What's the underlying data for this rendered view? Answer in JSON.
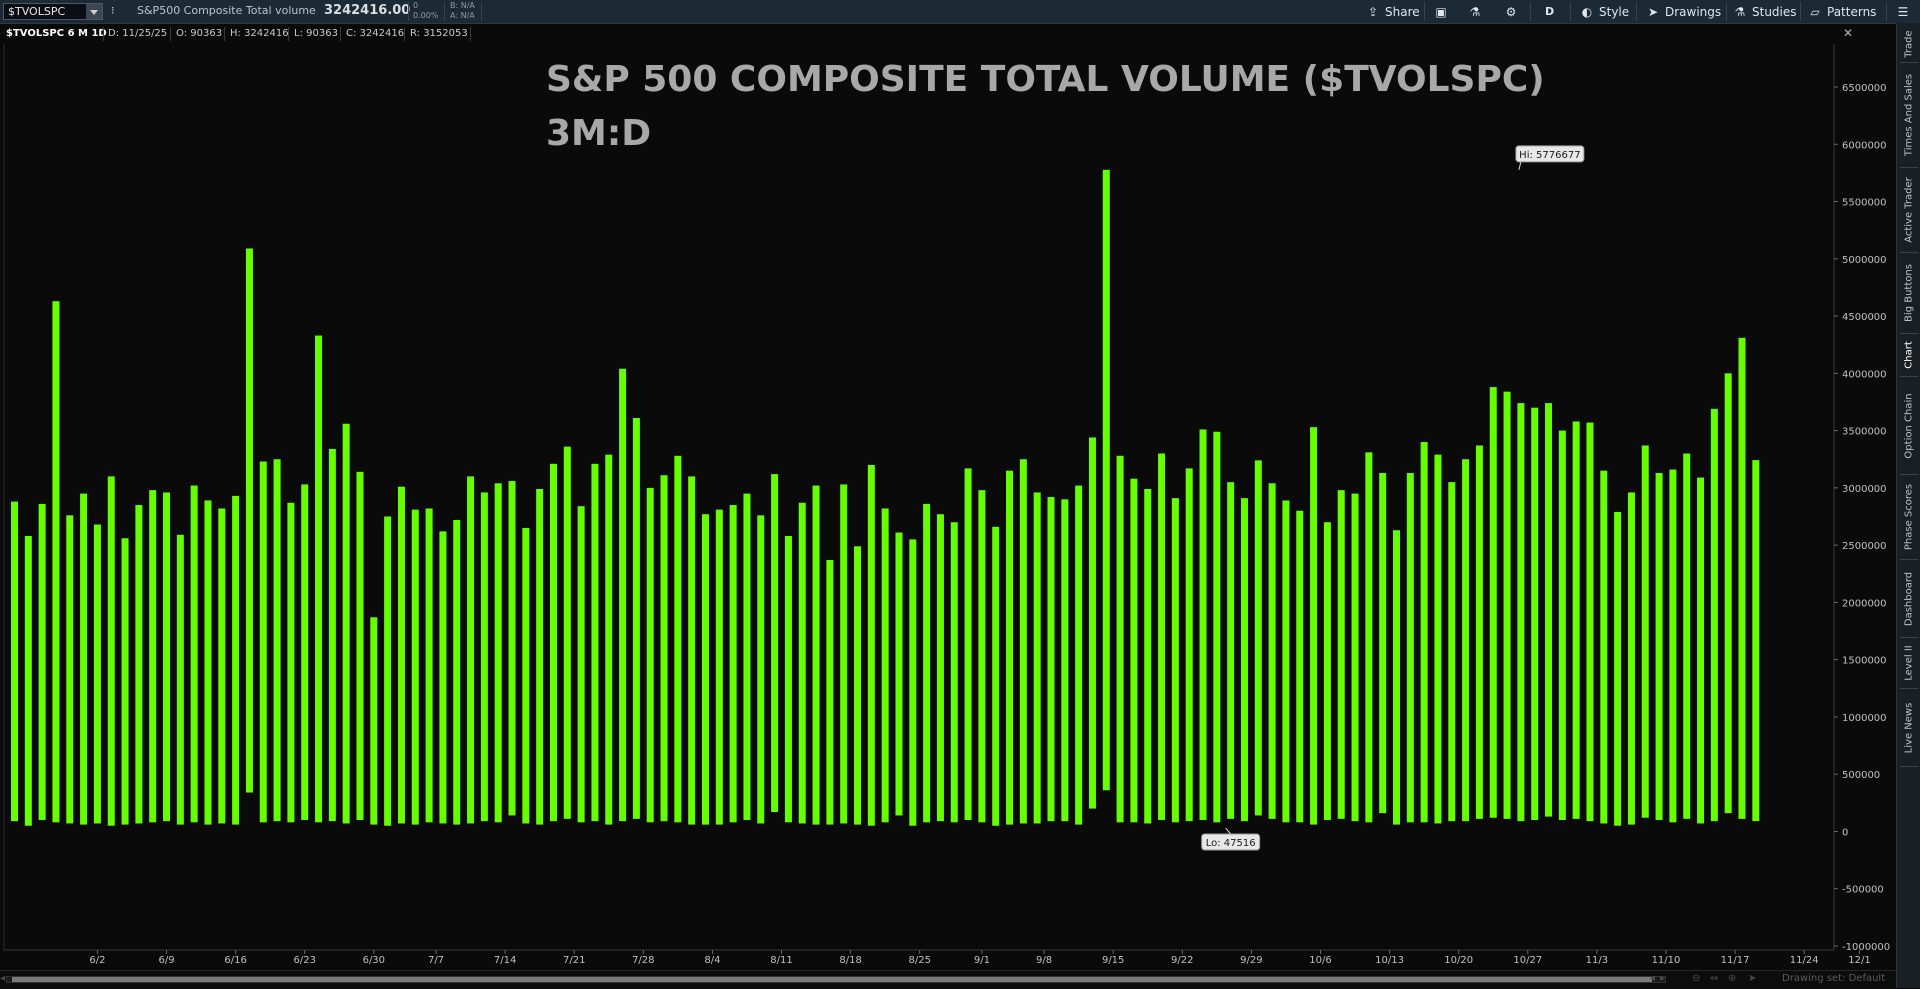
{
  "toolbar": {
    "symbol": "$TVOLSPC",
    "description": "S&P500 Composite Total volume",
    "last_price": "3242416.00",
    "change_top": "0",
    "change_pct": "0.00%",
    "bid": "B: N/A",
    "ask": "A: N/A",
    "share_label": "Share",
    "aggregation_label": "D",
    "style_label": "Style",
    "drawings_label": "Drawings",
    "studies_label": "Studies",
    "patterns_label": "Patterns"
  },
  "status": {
    "series": "$TVOLSPC 6 M 1D",
    "date": "D: 11/25/25",
    "open": "O: 90363",
    "high": "H: 3242416",
    "low": "L: 90363",
    "close": "C: 3242416",
    "range": "R: 3152053"
  },
  "right_tabs": [
    "Trade",
    "Times And Sales",
    "Active Trader",
    "Big Buttons",
    "Chart",
    "Option Chain",
    "Phase Scores",
    "Dashboard",
    "Level II",
    "Live News"
  ],
  "active_tab": "Chart",
  "bottom": {
    "drawing_set": "Drawing set: Default"
  },
  "colors": {
    "bar": "#66ff00",
    "background": "#0a0a0a",
    "text": "#a8a8a8"
  },
  "chart_data": {
    "type": "bar",
    "title": "S&P 500 COMPOSITE TOTAL VOLUME ($TVOLSPC)",
    "subtitle": "3M:D",
    "ylim": [
      -1000000,
      6700000
    ],
    "y_ticks": [
      -1000000,
      -500000,
      0,
      500000,
      1000000,
      1500000,
      2000000,
      2500000,
      3000000,
      3500000,
      4000000,
      4500000,
      5000000,
      5500000,
      6000000,
      6500000
    ],
    "y_tick_labels": [
      "-1000000",
      "-500000",
      "0",
      "500000",
      "1000000",
      "1500000",
      "2000000",
      "2500000",
      "3000000",
      "3500000",
      "4000000",
      "4500000",
      "5000000",
      "5500000",
      "6000000",
      "6500000"
    ],
    "x_ticks": [
      {
        "label": "6/2",
        "index": 6
      },
      {
        "label": "6/9",
        "index": 11
      },
      {
        "label": "6/16",
        "index": 16
      },
      {
        "label": "6/23",
        "index": 21
      },
      {
        "label": "6/30",
        "index": 26
      },
      {
        "label": "7/7",
        "index": 30.5
      },
      {
        "label": "7/14",
        "index": 35.5
      },
      {
        "label": "7/21",
        "index": 40.5
      },
      {
        "label": "7/28",
        "index": 45.5
      },
      {
        "label": "8/4",
        "index": 50.5
      },
      {
        "label": "8/11",
        "index": 55.5
      },
      {
        "label": "8/18",
        "index": 60.5
      },
      {
        "label": "8/25",
        "index": 65.5
      },
      {
        "label": "9/1",
        "index": 70
      },
      {
        "label": "9/8",
        "index": 74.5
      },
      {
        "label": "9/15",
        "index": 79.5
      },
      {
        "label": "9/22",
        "index": 84.5
      },
      {
        "label": "9/29",
        "index": 89.5
      },
      {
        "label": "10/6",
        "index": 94.5
      },
      {
        "label": "10/13",
        "index": 99.5
      },
      {
        "label": "10/20",
        "index": 104.5
      },
      {
        "label": "10/27",
        "index": 109.5
      },
      {
        "label": "11/3",
        "index": 114.5
      },
      {
        "label": "11/10",
        "index": 119.5
      },
      {
        "label": "11/17",
        "index": 124.5
      },
      {
        "label": "11/24",
        "index": 129.5
      },
      {
        "label": "12/1",
        "index": 133.5
      }
    ],
    "bars": [
      [
        90000,
        2880000
      ],
      [
        50000,
        2580000
      ],
      [
        100000,
        2860000
      ],
      [
        80000,
        4630000
      ],
      [
        70000,
        2760000
      ],
      [
        60000,
        2950000
      ],
      [
        70000,
        2680000
      ],
      [
        50000,
        3100000
      ],
      [
        60000,
        2560000
      ],
      [
        70000,
        2850000
      ],
      [
        80000,
        2980000
      ],
      [
        90000,
        2960000
      ],
      [
        60000,
        2590000
      ],
      [
        80000,
        3020000
      ],
      [
        60000,
        2890000
      ],
      [
        70000,
        2820000
      ],
      [
        60000,
        2930000
      ],
      [
        340000,
        5090000
      ],
      [
        80000,
        3230000
      ],
      [
        90000,
        3250000
      ],
      [
        80000,
        2870000
      ],
      [
        100000,
        3030000
      ],
      [
        80000,
        4330000
      ],
      [
        90000,
        3340000
      ],
      [
        70000,
        3560000
      ],
      [
        100000,
        3140000
      ],
      [
        60000,
        1870000
      ],
      [
        50000,
        2750000
      ],
      [
        70000,
        3010000
      ],
      [
        60000,
        2810000
      ],
      [
        80000,
        2820000
      ],
      [
        70000,
        2620000
      ],
      [
        60000,
        2720000
      ],
      [
        70000,
        3100000
      ],
      [
        90000,
        2960000
      ],
      [
        80000,
        3040000
      ],
      [
        140000,
        3060000
      ],
      [
        70000,
        2650000
      ],
      [
        60000,
        2990000
      ],
      [
        90000,
        3210000
      ],
      [
        110000,
        3360000
      ],
      [
        80000,
        2840000
      ],
      [
        90000,
        3210000
      ],
      [
        60000,
        3290000
      ],
      [
        90000,
        4040000
      ],
      [
        110000,
        3610000
      ],
      [
        80000,
        3000000
      ],
      [
        90000,
        3110000
      ],
      [
        80000,
        3280000
      ],
      [
        60000,
        3100000
      ],
      [
        60000,
        2770000
      ],
      [
        60000,
        2810000
      ],
      [
        80000,
        2850000
      ],
      [
        100000,
        2950000
      ],
      [
        70000,
        2760000
      ],
      [
        170000,
        3120000
      ],
      [
        80000,
        2580000
      ],
      [
        70000,
        2870000
      ],
      [
        60000,
        3020000
      ],
      [
        60000,
        2370000
      ],
      [
        70000,
        3030000
      ],
      [
        60000,
        2490000
      ],
      [
        50000,
        3200000
      ],
      [
        80000,
        2820000
      ],
      [
        140000,
        2610000
      ],
      [
        50000,
        2550000
      ],
      [
        80000,
        2860000
      ],
      [
        90000,
        2770000
      ],
      [
        80000,
        2700000
      ],
      [
        100000,
        3170000
      ],
      [
        80000,
        2980000
      ],
      [
        50000,
        2660000
      ],
      [
        60000,
        3150000
      ],
      [
        70000,
        3250000
      ],
      [
        70000,
        2960000
      ],
      [
        90000,
        2920000
      ],
      [
        90000,
        2900000
      ],
      [
        60000,
        3020000
      ],
      [
        200000,
        3440000
      ],
      [
        360000,
        5776677
      ],
      [
        80000,
        3280000
      ],
      [
        80000,
        3080000
      ],
      [
        70000,
        2990000
      ],
      [
        100000,
        3300000
      ],
      [
        80000,
        2910000
      ],
      [
        90000,
        3170000
      ],
      [
        100000,
        3510000
      ],
      [
        80000,
        3490000
      ],
      [
        110000,
        3050000
      ],
      [
        90000,
        2910000
      ],
      [
        140000,
        3240000
      ],
      [
        110000,
        3040000
      ],
      [
        80000,
        2890000
      ],
      [
        80000,
        2800000
      ],
      [
        60000,
        3530000
      ],
      [
        100000,
        2700000
      ],
      [
        110000,
        2980000
      ],
      [
        90000,
        2950000
      ],
      [
        80000,
        3310000
      ],
      [
        160000,
        3130000
      ],
      [
        60000,
        2630000
      ],
      [
        80000,
        3130000
      ],
      [
        80000,
        3400000
      ],
      [
        70000,
        3290000
      ],
      [
        90000,
        3050000
      ],
      [
        90000,
        3250000
      ],
      [
        110000,
        3370000
      ],
      [
        120000,
        3880000
      ],
      [
        110000,
        3840000
      ],
      [
        90000,
        3740000
      ],
      [
        100000,
        3700000
      ],
      [
        130000,
        3740000
      ],
      [
        100000,
        3500000
      ],
      [
        110000,
        3580000
      ],
      [
        90000,
        3570000
      ],
      [
        70000,
        3150000
      ],
      [
        50000,
        2790000
      ],
      [
        60000,
        2960000
      ],
      [
        120000,
        3370000
      ],
      [
        100000,
        3130000
      ],
      [
        80000,
        3160000
      ],
      [
        110000,
        3300000
      ],
      [
        70000,
        3090000
      ],
      [
        90000,
        3690000
      ],
      [
        160000,
        4000000
      ],
      [
        110000,
        4310000
      ],
      [
        90363,
        3242416
      ]
    ],
    "annotations": [
      {
        "text": "Hi: 5776677",
        "bar_index": 109,
        "value": 5776677
      },
      {
        "text": "Lo: 47516",
        "bar_index": 88,
        "value": 47516
      }
    ]
  }
}
